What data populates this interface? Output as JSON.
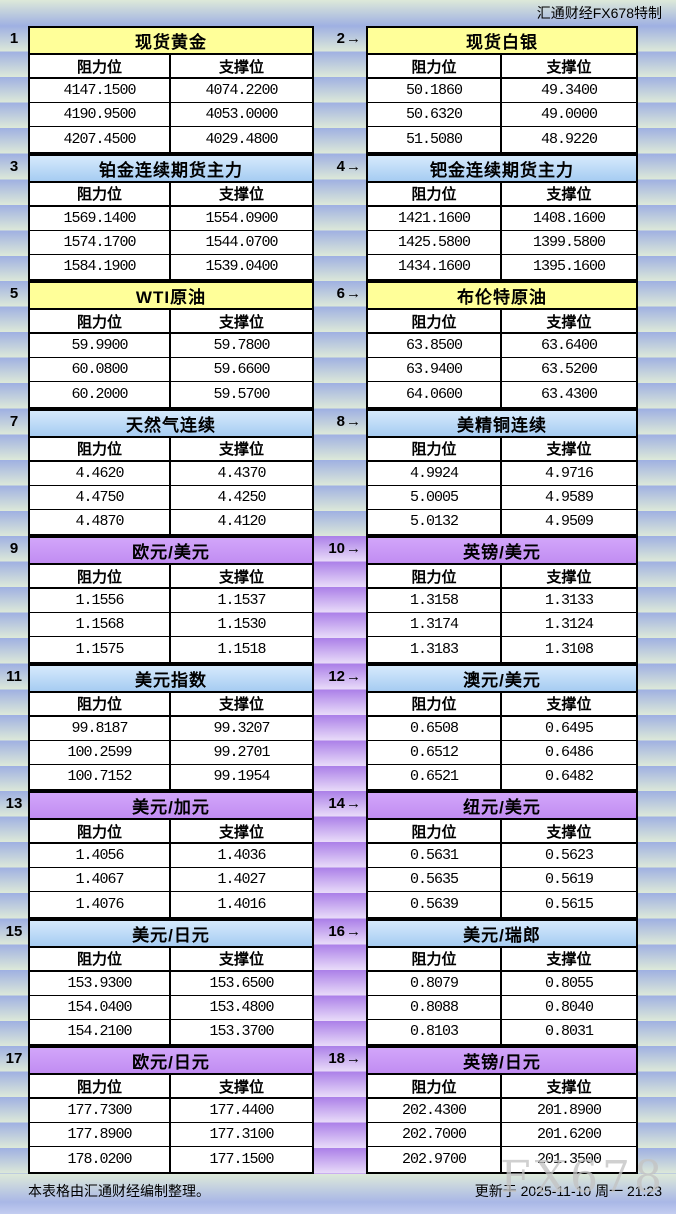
{
  "brand": {
    "text": "汇通财经FX678特制"
  },
  "watermark": {
    "text": "FX678"
  },
  "footer": {
    "note": "本表格由汇通财经编制整理。",
    "updated": "更新于 2025-11-10 周一 21:23"
  },
  "icons": {
    "arrow_right": "→"
  },
  "colors": {
    "stripe_blue_dark": "#9fb0e2",
    "stripe_blue_light": "#dde9d9",
    "stripe_purple_dark": "#ab7fe8",
    "stripe_purple_light": "#e9dcf9",
    "title_yellow": "#ffff99",
    "title_blue_top": "#d6eafc",
    "title_blue_bottom": "#a6ccf2",
    "title_purple_top": "#d2a6fa",
    "title_purple_bottom": "#c18df2",
    "border": "#000000"
  },
  "table": {
    "col_headers": {
      "resistance": "阻力位",
      "support": "支撑位"
    },
    "sections": [
      {
        "stripe": "blue",
        "left": {
          "no": "1",
          "title": "现货黄金",
          "style": "yellow",
          "rows": [
            [
              "4147.1500",
              "4074.2200"
            ],
            [
              "4190.9500",
              "4053.0000"
            ],
            [
              "4207.4500",
              "4029.4800"
            ]
          ]
        },
        "right": {
          "no": "2",
          "title": "现货白银",
          "style": "yellow",
          "rows": [
            [
              "50.1860",
              "49.3400"
            ],
            [
              "50.6320",
              "49.0000"
            ],
            [
              "51.5080",
              "48.9220"
            ]
          ]
        }
      },
      {
        "stripe": "blue",
        "left": {
          "no": "3",
          "title": "铂金连续期货主力",
          "style": "blue",
          "rows": [
            [
              "1569.1400",
              "1554.0900"
            ],
            [
              "1574.1700",
              "1544.0700"
            ],
            [
              "1584.1900",
              "1539.0400"
            ]
          ]
        },
        "right": {
          "no": "4",
          "title": "钯金连续期货主力",
          "style": "blue",
          "rows": [
            [
              "1421.1600",
              "1408.1600"
            ],
            [
              "1425.5800",
              "1399.5800"
            ],
            [
              "1434.1600",
              "1395.1600"
            ]
          ]
        }
      },
      {
        "stripe": "blue",
        "left": {
          "no": "5",
          "title": "WTI原油",
          "style": "yellow",
          "rows": [
            [
              "59.9900",
              "59.7800"
            ],
            [
              "60.0800",
              "59.6600"
            ],
            [
              "60.2000",
              "59.5700"
            ]
          ]
        },
        "right": {
          "no": "6",
          "title": "布伦特原油",
          "style": "yellow",
          "rows": [
            [
              "63.8500",
              "63.6400"
            ],
            [
              "63.9400",
              "63.5200"
            ],
            [
              "64.0600",
              "63.4300"
            ]
          ]
        }
      },
      {
        "stripe": "blue",
        "left": {
          "no": "7",
          "title": "天然气连续",
          "style": "blue",
          "rows": [
            [
              "4.4620",
              "4.4370"
            ],
            [
              "4.4750",
              "4.4250"
            ],
            [
              "4.4870",
              "4.4120"
            ]
          ]
        },
        "right": {
          "no": "8",
          "title": "美精铜连续",
          "style": "blue",
          "rows": [
            [
              "4.9924",
              "4.9716"
            ],
            [
              "5.0005",
              "4.9589"
            ],
            [
              "5.0132",
              "4.9509"
            ]
          ]
        }
      },
      {
        "stripe": "purple",
        "left": {
          "no": "9",
          "title": "欧元/美元",
          "style": "purple",
          "rows": [
            [
              "1.1556",
              "1.1537"
            ],
            [
              "1.1568",
              "1.1530"
            ],
            [
              "1.1575",
              "1.1518"
            ]
          ]
        },
        "right": {
          "no": "10",
          "title": "英镑/美元",
          "style": "purple",
          "rows": [
            [
              "1.3158",
              "1.3133"
            ],
            [
              "1.3174",
              "1.3124"
            ],
            [
              "1.3183",
              "1.3108"
            ]
          ]
        }
      },
      {
        "stripe": "purple",
        "left": {
          "no": "11",
          "title": "美元指数",
          "style": "blue",
          "rows": [
            [
              "99.8187",
              "99.3207"
            ],
            [
              "100.2599",
              "99.2701"
            ],
            [
              "100.7152",
              "99.1954"
            ]
          ]
        },
        "right": {
          "no": "12",
          "title": "澳元/美元",
          "style": "blue",
          "rows": [
            [
              "0.6508",
              "0.6495"
            ],
            [
              "0.6512",
              "0.6486"
            ],
            [
              "0.6521",
              "0.6482"
            ]
          ]
        }
      },
      {
        "stripe": "purple",
        "left": {
          "no": "13",
          "title": "美元/加元",
          "style": "purple",
          "rows": [
            [
              "1.4056",
              "1.4036"
            ],
            [
              "1.4067",
              "1.4027"
            ],
            [
              "1.4076",
              "1.4016"
            ]
          ]
        },
        "right": {
          "no": "14",
          "title": "纽元/美元",
          "style": "purple",
          "rows": [
            [
              "0.5631",
              "0.5623"
            ],
            [
              "0.5635",
              "0.5619"
            ],
            [
              "0.5639",
              "0.5615"
            ]
          ]
        }
      },
      {
        "stripe": "purple",
        "left": {
          "no": "15",
          "title": "美元/日元",
          "style": "blue",
          "rows": [
            [
              "153.9300",
              "153.6500"
            ],
            [
              "154.0400",
              "153.4800"
            ],
            [
              "154.2100",
              "153.3700"
            ]
          ]
        },
        "right": {
          "no": "16",
          "title": "美元/瑞郎",
          "style": "blue",
          "rows": [
            [
              "0.8079",
              "0.8055"
            ],
            [
              "0.8088",
              "0.8040"
            ],
            [
              "0.8103",
              "0.8031"
            ]
          ]
        }
      },
      {
        "stripe": "purple",
        "left": {
          "no": "17",
          "title": "欧元/日元",
          "style": "purple",
          "rows": [
            [
              "177.7300",
              "177.4400"
            ],
            [
              "177.8900",
              "177.3100"
            ],
            [
              "178.0200",
              "177.1500"
            ]
          ]
        },
        "right": {
          "no": "18",
          "title": "英镑/日元",
          "style": "purple",
          "rows": [
            [
              "202.4300",
              "201.8900"
            ],
            [
              "202.7000",
              "201.6200"
            ],
            [
              "202.9700",
              "201.3500"
            ]
          ]
        }
      }
    ]
  }
}
